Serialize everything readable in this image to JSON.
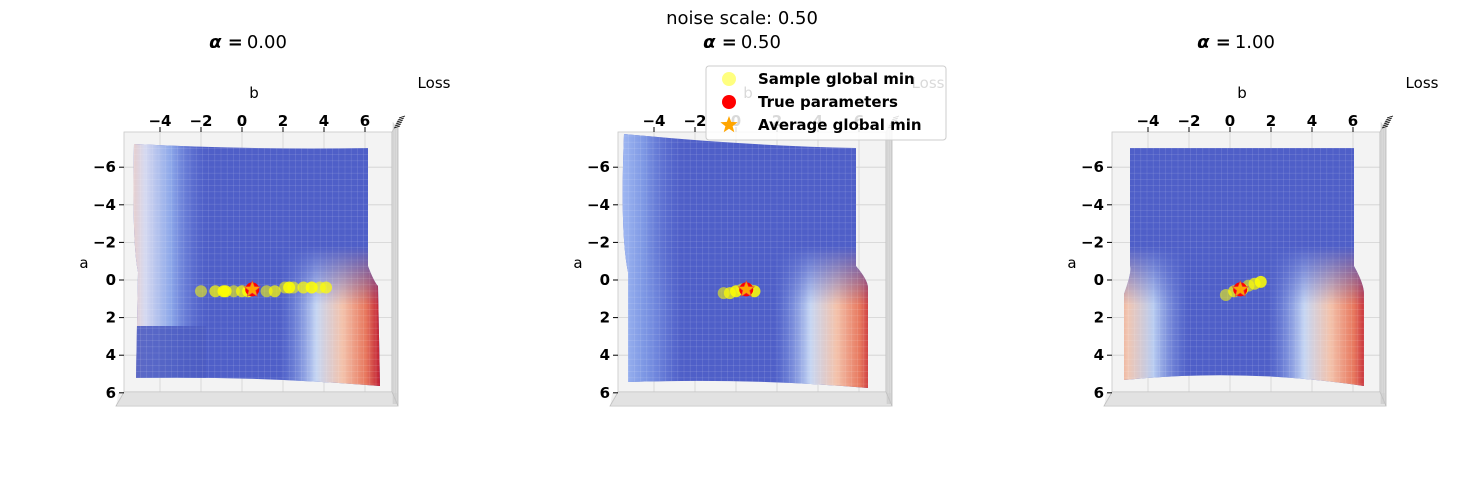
{
  "suptitle": "noise scale: 0.50",
  "colors": {
    "sample_min": "#ffff00",
    "true_params": "#ff0000",
    "average_min": "#ffa500",
    "surface_low": "#4f5fc8",
    "surface_high": "#b40426",
    "pane": "#f3f3f3"
  },
  "legend": {
    "placement": "top-center",
    "entries": [
      {
        "label": "Sample global min",
        "marker": "circle",
        "color": "#ffff00"
      },
      {
        "label": "True parameters",
        "marker": "circle",
        "color": "#ff0000"
      },
      {
        "label": "Average global min",
        "marker": "star",
        "color": "#ffa500"
      }
    ]
  },
  "chart_data": [
    {
      "type": "surface3d",
      "title_symbol": "α =",
      "title_value": "0.00",
      "xlabel": "b",
      "ylabel": "a",
      "zlabel": "Loss",
      "xlim": [
        -6,
        6.5
      ],
      "ylim": [
        -7,
        6
      ],
      "xticks": [
        "−4",
        "−2",
        "0",
        "2",
        "4",
        "6"
      ],
      "yticks": [
        "−6",
        "−4",
        "−2",
        "0",
        "2",
        "4",
        "6"
      ],
      "true_parameters": {
        "b": 0.5,
        "a": 0.5
      },
      "average_global_min": {
        "b": 0.5,
        "a": 0.5
      },
      "sample_global_min": [
        {
          "b": -2.0,
          "a": 0.6
        },
        {
          "b": -1.3,
          "a": 0.6
        },
        {
          "b": -0.8,
          "a": 0.6
        },
        {
          "b": -0.4,
          "a": 0.6
        },
        {
          "b": 0.0,
          "a": 0.6
        },
        {
          "b": 0.3,
          "a": 0.6
        },
        {
          "b": 1.2,
          "a": 0.6
        },
        {
          "b": 1.6,
          "a": 0.6
        },
        {
          "b": 2.3,
          "a": 0.4
        },
        {
          "b": 2.5,
          "a": 0.4
        },
        {
          "b": 3.0,
          "a": 0.4
        },
        {
          "b": 3.4,
          "a": 0.4
        },
        {
          "b": 3.8,
          "a": 0.4
        },
        {
          "b": 4.1,
          "a": 0.4
        },
        {
          "b": -0.9,
          "a": 0.6
        },
        {
          "b": 2.1,
          "a": 0.4
        }
      ]
    },
    {
      "type": "surface3d",
      "title_symbol": "α =",
      "title_value": "0.50",
      "xlabel": "b",
      "ylabel": "a",
      "zlabel": "Loss",
      "xlim": [
        -6,
        6.5
      ],
      "ylim": [
        -7,
        6
      ],
      "xticks": [
        "−4",
        "−2",
        "0",
        "2",
        "4",
        "6"
      ],
      "yticks": [
        "−6",
        "−4",
        "−2",
        "0",
        "2",
        "4",
        "6"
      ],
      "true_parameters": {
        "b": 0.5,
        "a": 0.5
      },
      "average_global_min": {
        "b": 0.5,
        "a": 0.5
      },
      "sample_global_min": [
        {
          "b": -0.6,
          "a": 0.7
        },
        {
          "b": -0.3,
          "a": 0.7
        },
        {
          "b": 0.0,
          "a": 0.6
        },
        {
          "b": 0.3,
          "a": 0.5
        },
        {
          "b": 0.6,
          "a": 0.5
        },
        {
          "b": 0.9,
          "a": 0.6
        }
      ]
    },
    {
      "type": "surface3d",
      "title_symbol": "α =",
      "title_value": "1.00",
      "xlabel": "b",
      "ylabel": "a",
      "zlabel": "Loss",
      "xlim": [
        -6,
        6.5
      ],
      "ylim": [
        -7,
        6
      ],
      "xticks": [
        "−4",
        "−2",
        "0",
        "2",
        "4",
        "6"
      ],
      "yticks": [
        "−6",
        "−4",
        "−2",
        "0",
        "2",
        "4",
        "6"
      ],
      "true_parameters": {
        "b": 0.5,
        "a": 0.5
      },
      "average_global_min": {
        "b": 0.5,
        "a": 0.5
      },
      "sample_global_min": [
        {
          "b": -0.2,
          "a": 0.8
        },
        {
          "b": 0.2,
          "a": 0.6
        },
        {
          "b": 0.6,
          "a": 0.5
        },
        {
          "b": 0.9,
          "a": 0.3
        },
        {
          "b": 1.2,
          "a": 0.2
        },
        {
          "b": 1.5,
          "a": 0.1
        }
      ]
    }
  ]
}
